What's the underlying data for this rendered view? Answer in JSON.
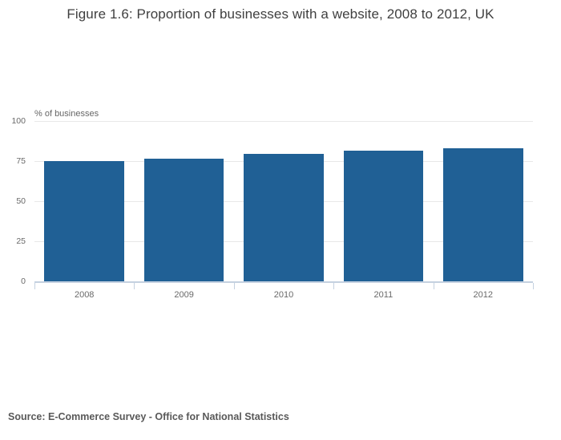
{
  "title": "Figure 1.6: Proportion of businesses with a website, 2008 to 2012, UK",
  "source": "Source: E-Commerce Survey - Office for National Statistics",
  "chart_data": {
    "type": "bar",
    "title": "Figure 1.6: Proportion of businesses with a website, 2008 to 2012, UK",
    "categories": [
      "2008",
      "2009",
      "2010",
      "2011",
      "2012"
    ],
    "values": [
      75,
      76.5,
      79.5,
      81.5,
      83
    ],
    "xlabel": "",
    "ylabel": "% of businesses",
    "yticks": [
      0,
      25,
      50,
      75,
      100
    ],
    "ylim": [
      0,
      100
    ],
    "grid": true,
    "legend_position": "none",
    "colors": {
      "bar": "#206095",
      "grid_line": "#e8e8e8",
      "axis_line": "#c4d1e0",
      "tick_label": "#696969",
      "title_text": "#3f3f3f",
      "source_text": "#595959"
    }
  }
}
